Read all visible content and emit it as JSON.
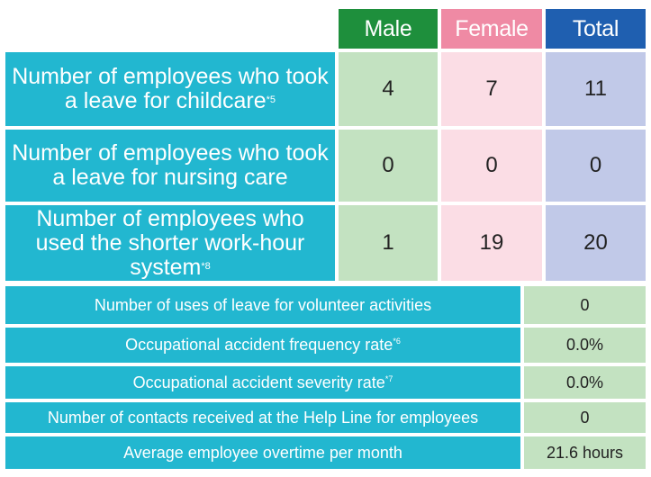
{
  "header": {
    "male": "Male",
    "female": "Female",
    "total": "Total"
  },
  "leave_rows": [
    {
      "label": "Number of employees who took a leave for childcare",
      "footnote": "*5",
      "male": "4",
      "female": "7",
      "total": "11"
    },
    {
      "label": "Number of employees who took a leave for nursing care",
      "footnote": "",
      "male": "0",
      "female": "0",
      "total": "0"
    },
    {
      "label": "Number of employees who used the shorter work-hour system",
      "footnote": "*8",
      "male": "1",
      "female": "19",
      "total": "20"
    }
  ],
  "metric_rows": [
    {
      "label": "Number of uses of leave for volunteer activities",
      "footnote": "",
      "value": "0"
    },
    {
      "label": "Occupational accident frequency rate",
      "footnote": "*6",
      "value": "0.0%"
    },
    {
      "label": "Occupational accident severity rate",
      "footnote": "*7",
      "value": "0.0%"
    },
    {
      "label": "Number of contacts received at the Help Line for employees",
      "footnote": "",
      "value": "0"
    },
    {
      "label": "Average employee overtime per month",
      "footnote": "",
      "value": "21.6 hours"
    }
  ],
  "colors": {
    "label_bg": "#22b7d0",
    "male_header": "#1e8f3c",
    "female_header": "#ef8aa4",
    "total_header": "#1f5fb0",
    "male_cell": "#c3e2c1",
    "female_cell": "#fbdde5",
    "total_cell": "#c1c9e8"
  }
}
